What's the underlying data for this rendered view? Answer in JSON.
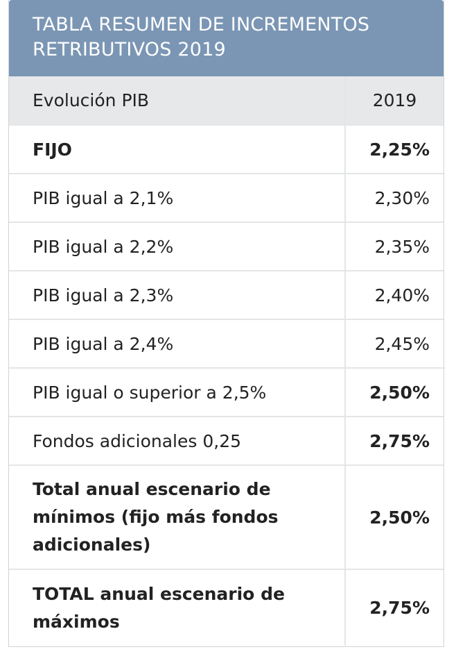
{
  "title_lines": [
    "TABLA RESUMEN DE INCREMENTOS",
    "RETRIBUTIVOS 2019"
  ],
  "header": {
    "col1": "Evolución PIB",
    "col2": "2019"
  },
  "rows": [
    {
      "label": "FIJO",
      "value": "2,25%"
    },
    {
      "label": "PIB igual a 2,1%",
      "value": "2,30%"
    },
    {
      "label": "PIB igual a 2,2%",
      "value": "2,35%"
    },
    {
      "label": "PIB igual a 2,3%",
      "value": "2,40%"
    },
    {
      "label": "PIB igual a 2,4%",
      "value": "2,45%"
    },
    {
      "label": "PIB igual o superior a 2,5%",
      "value": "2,50%"
    },
    {
      "label": "Fondos adicionales 0,25",
      "value": "2,75%"
    },
    {
      "label": "Total anual escenario de mínimos (fijo más fondos adicionales)",
      "value": "2,50%"
    },
    {
      "label": "TOTAL anual escenario de máximos",
      "value": "2,75%"
    }
  ]
}
